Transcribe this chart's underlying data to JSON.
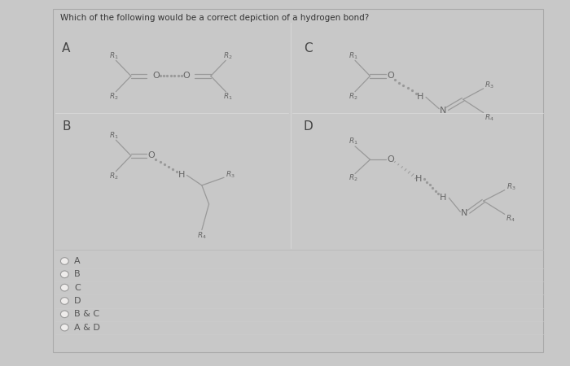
{
  "title": "Which of the following would be a correct depiction of a hydrogen bond?",
  "bg_color": "#c8c8c8",
  "panel_bg": "#eeeceb",
  "text_color": "#666666",
  "line_color": "#999999",
  "options": [
    "A",
    "B",
    "C",
    "D",
    "B & C",
    "A & D"
  ],
  "figsize": [
    7.0,
    4.5
  ],
  "dpi": 100
}
